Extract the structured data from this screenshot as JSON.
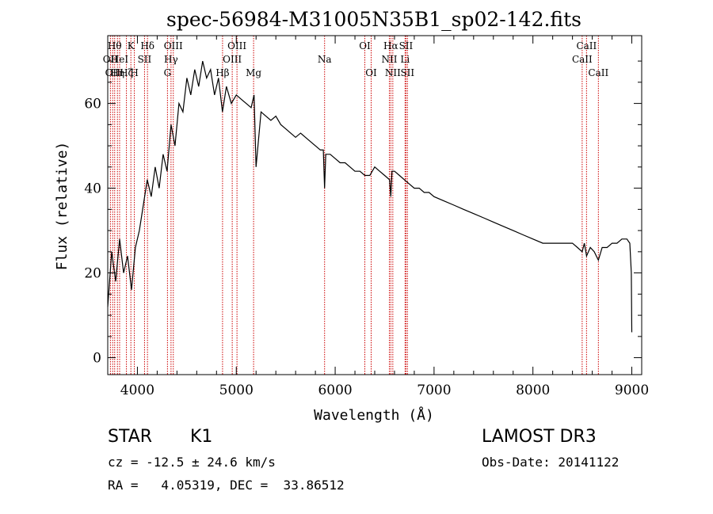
{
  "chart_data": {
    "type": "line",
    "title": "spec-56984-M31005N35B1_sp02-142.fits",
    "xlabel": "Wavelength (Å)",
    "ylabel": "Flux (relative)",
    "xlim": [
      3700,
      9100
    ],
    "ylim": [
      -4,
      76
    ],
    "x_ticks": [
      4000,
      5000,
      6000,
      7000,
      8000,
      9000
    ],
    "y_ticks": [
      0,
      20,
      40,
      60
    ],
    "series": [
      {
        "name": "flux",
        "x": [
          3700,
          3740,
          3780,
          3820,
          3860,
          3900,
          3940,
          3980,
          4020,
          4060,
          4100,
          4140,
          4180,
          4220,
          4260,
          4300,
          4340,
          4380,
          4420,
          4460,
          4500,
          4540,
          4580,
          4620,
          4660,
          4700,
          4740,
          4780,
          4820,
          4860,
          4900,
          4950,
          5000,
          5050,
          5100,
          5150,
          5180,
          5200,
          5250,
          5300,
          5350,
          5400,
          5450,
          5500,
          5550,
          5600,
          5650,
          5700,
          5750,
          5800,
          5850,
          5880,
          5893,
          5905,
          5950,
          6000,
          6050,
          6100,
          6150,
          6200,
          6250,
          6300,
          6350,
          6400,
          6450,
          6500,
          6550,
          6563,
          6575,
          6600,
          6650,
          6700,
          6750,
          6800,
          6850,
          6900,
          6950,
          7000,
          7100,
          7200,
          7300,
          7400,
          7500,
          7600,
          7700,
          7800,
          7900,
          8000,
          8100,
          8200,
          8300,
          8400,
          8450,
          8498,
          8520,
          8542,
          8580,
          8620,
          8662,
          8700,
          8750,
          8800,
          8850,
          8900,
          8950,
          8980,
          8995,
          9000
        ],
        "y": [
          12,
          25,
          18,
          28,
          20,
          24,
          16,
          26,
          30,
          36,
          42,
          38,
          45,
          40,
          48,
          44,
          55,
          50,
          60,
          58,
          66,
          62,
          68,
          64,
          70,
          66,
          68,
          62,
          66,
          58,
          64,
          60,
          62,
          61,
          60,
          59,
          62,
          45,
          58,
          57,
          56,
          57,
          55,
          54,
          53,
          52,
          53,
          52,
          51,
          50,
          49,
          49,
          40,
          48,
          48,
          47,
          46,
          46,
          45,
          44,
          44,
          43,
          43,
          45,
          44,
          43,
          42,
          38,
          44,
          44,
          43,
          42,
          41,
          40,
          40,
          39,
          39,
          38,
          37,
          36,
          35,
          34,
          33,
          32,
          31,
          30,
          29,
          28,
          27,
          27,
          27,
          27,
          26,
          25,
          27,
          24,
          26,
          25,
          23,
          26,
          26,
          27,
          27,
          28,
          28,
          27,
          20,
          6
        ]
      }
    ],
    "line_markers": [
      {
        "wl": 3727,
        "label": "OII",
        "row": 2
      },
      {
        "wl": 3750,
        "label": "OII",
        "row": 3
      },
      {
        "wl": 3770,
        "label": "Hθ",
        "row": 1
      },
      {
        "wl": 3798,
        "label": "Hη",
        "row": 3
      },
      {
        "wl": 3820,
        "label": "HeI",
        "row": 2
      },
      {
        "wl": 3889,
        "label": "Hζ",
        "row": 3
      },
      {
        "wl": 3934,
        "label": "K",
        "row": 1
      },
      {
        "wl": 3969,
        "label": "H",
        "row": 3
      },
      {
        "wl": 4072,
        "label": "SII",
        "row": 2
      },
      {
        "wl": 4102,
        "label": "Hδ",
        "row": 1
      },
      {
        "wl": 4304,
        "label": "G",
        "row": 3
      },
      {
        "wl": 4340,
        "label": "Hγ",
        "row": 2
      },
      {
        "wl": 4363,
        "label": "OIII",
        "row": 1
      },
      {
        "wl": 4861,
        "label": "Hβ",
        "row": 3
      },
      {
        "wl": 4959,
        "label": "OIII",
        "row": 2
      },
      {
        "wl": 5007,
        "label": "OIII",
        "row": 1
      },
      {
        "wl": 5175,
        "label": "Mg",
        "row": 3
      },
      {
        "wl": 5893,
        "label": "Na",
        "row": 2
      },
      {
        "wl": 6300,
        "label": "OI",
        "row": 1
      },
      {
        "wl": 6364,
        "label": "OI",
        "row": 3
      },
      {
        "wl": 6548,
        "label": "NII",
        "row": 2
      },
      {
        "wl": 6563,
        "label": "Hα",
        "row": 1
      },
      {
        "wl": 6583,
        "label": "NII",
        "row": 3
      },
      {
        "wl": 6707,
        "label": "Li",
        "row": 2
      },
      {
        "wl": 6716,
        "label": "SII",
        "row": 1
      },
      {
        "wl": 6731,
        "label": "SII",
        "row": 3
      },
      {
        "wl": 8498,
        "label": "CaII",
        "row": 2
      },
      {
        "wl": 8542,
        "label": "CaII",
        "row": 1
      },
      {
        "wl": 8662,
        "label": "CaII",
        "row": 3
      }
    ]
  },
  "info": {
    "class": "STAR",
    "subclass": "K1",
    "survey": "LAMOST DR3",
    "cz": "cz = -12.5 ± 24.6 km/s",
    "obs_date": "Obs-Date: 20141122",
    "radec": "RA =   4.05319, DEC =  33.86512"
  },
  "colors": {
    "marker": "#cc0000",
    "axis": "#000000",
    "flux": "#000000"
  }
}
